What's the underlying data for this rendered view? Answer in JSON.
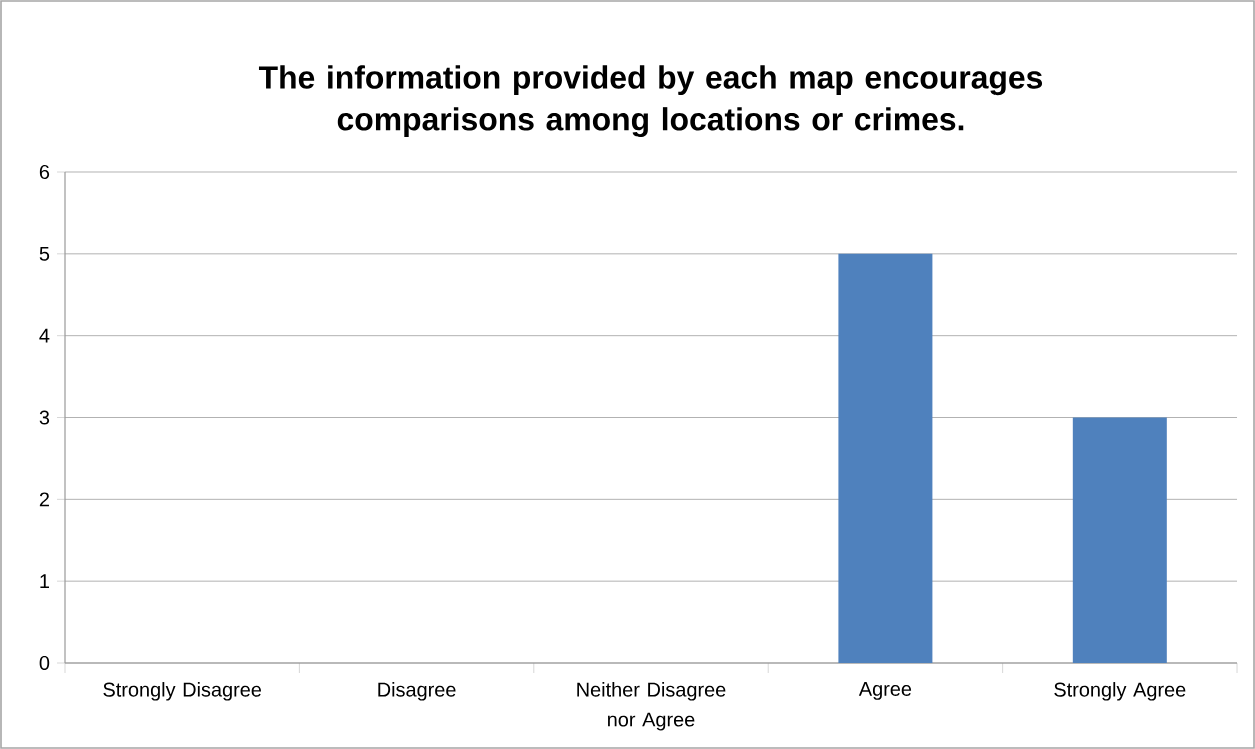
{
  "chart_data": {
    "type": "bar",
    "title": "The information provided by each map encourages comparisons among locations or crimes.",
    "categories": [
      "Strongly Disagree",
      "Disagree",
      "Neither Disagree nor Agree",
      "Agree",
      "Strongly Agree"
    ],
    "values": [
      0,
      0,
      0,
      5,
      3
    ],
    "color": "#4f81bd",
    "ylim": [
      0,
      6
    ],
    "yticks": [
      0,
      1,
      2,
      3,
      4,
      5,
      6
    ],
    "grid": "y"
  }
}
